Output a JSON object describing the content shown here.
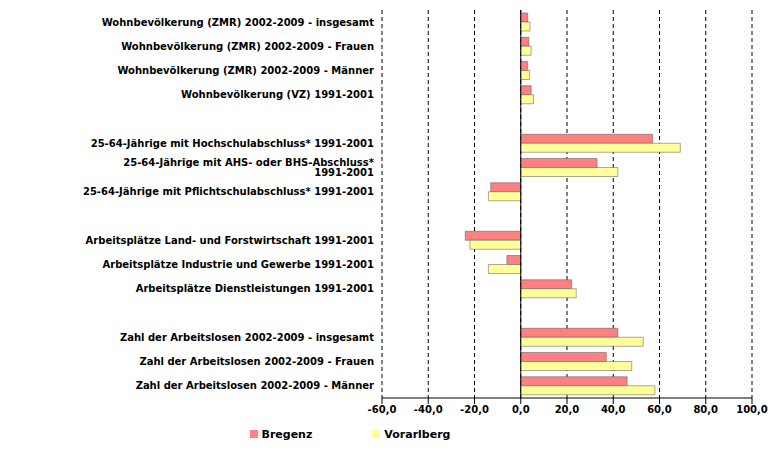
{
  "chart_data": {
    "type": "bar",
    "orientation": "horizontal",
    "categories": [
      "Wohnbevölkerung (ZMR) 2002-2009 - insgesamt",
      "Wohnbevölkerung (ZMR) 2002-2009 - Frauen",
      "Wohnbevölkerung (ZMR) 2002-2009 - Männer",
      "Wohnbevölkerung (VZ) 1991-2001",
      null,
      "25-64-Jährige mit Hochschulabschluss* 1991-2001",
      "25-64-Jährige mit AHS- oder BHS-Abschluss* 1991-2001",
      "25-64-Jährige mit Pflichtschulabschluss* 1991-2001",
      null,
      "Arbeitsplätze Land- und Forstwirtschaft 1991-2001",
      "Arbeitsplätze Industrie und Gewerbe 1991-2001",
      "Arbeitsplätze Dienstleistungen 1991-2001",
      null,
      "Zahl der Arbeitslosen 2002-2009 - insgesamt",
      "Zahl der Arbeitslosen 2002-2009 - Frauen",
      "Zahl der Arbeitslosen 2002-2009 - Männer"
    ],
    "series": [
      {
        "name": "Bregenz",
        "color": "#ff8080",
        "values": [
          3,
          3.5,
          3,
          4.5,
          null,
          57,
          33,
          -13,
          null,
          -24,
          -6,
          22,
          null,
          42,
          37,
          46
        ]
      },
      {
        "name": "Vorarlberg",
        "color": "#ffff99",
        "values": [
          4,
          4.5,
          3.8,
          5.5,
          null,
          69,
          42,
          -14,
          null,
          -22,
          -14,
          24,
          null,
          53,
          48,
          58
        ]
      }
    ],
    "xlim": [
      -60,
      100
    ],
    "xticks": [
      {
        "value": -60,
        "label": "-60,0"
      },
      {
        "value": -40,
        "label": "-40,0"
      },
      {
        "value": -20,
        "label": "-20,0"
      },
      {
        "value": 0,
        "label": "0,0"
      },
      {
        "value": 20,
        "label": "20,0"
      },
      {
        "value": 40,
        "label": "40,0"
      },
      {
        "value": 60,
        "label": "60,0"
      },
      {
        "value": 80,
        "label": "80,0"
      },
      {
        "value": 100,
        "label": "100,0"
      }
    ],
    "grid": true,
    "legend": "bottom"
  }
}
